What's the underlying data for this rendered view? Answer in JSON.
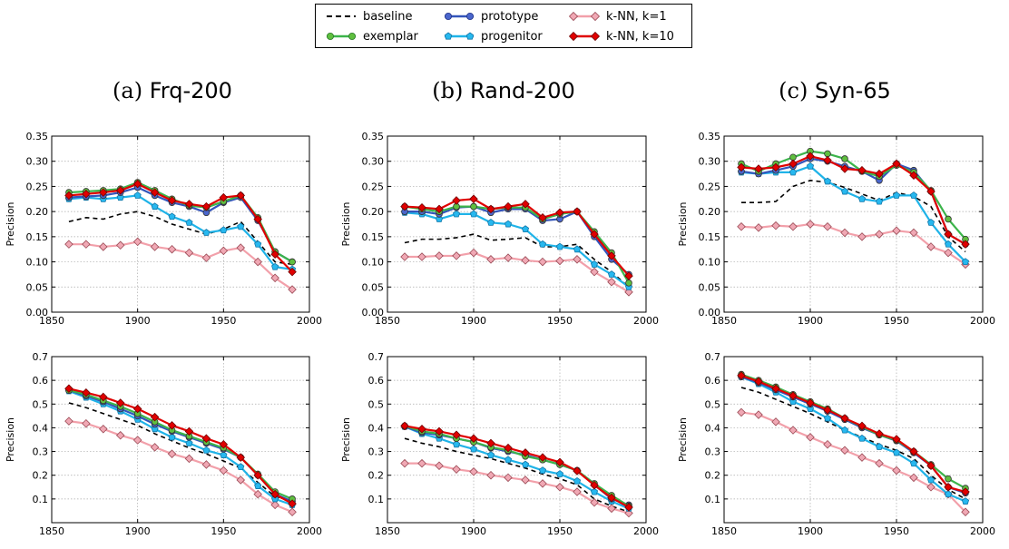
{
  "legend": {
    "items": [
      {
        "key": "baseline",
        "label": "baseline"
      },
      {
        "key": "exemplar",
        "label": "exemplar"
      },
      {
        "key": "prototype",
        "label": "prototype"
      },
      {
        "key": "progenitor",
        "label": "progenitor"
      },
      {
        "key": "knn1",
        "label": "k-NN, k=1"
      },
      {
        "key": "knn10",
        "label": "k-NN, k=10"
      }
    ]
  },
  "panel_titles": [
    {
      "prefix": "(a) ",
      "name": "Frq-200"
    },
    {
      "prefix": "(b) ",
      "name": "Rand-200"
    },
    {
      "prefix": "(c) ",
      "name": "Syn-65"
    }
  ],
  "series_styles": {
    "baseline": {
      "color": "#000000",
      "dash": true,
      "marker": "none"
    },
    "exemplar": {
      "color": "#3cb44b",
      "marker": "circle",
      "fill": "#5fbf3f"
    },
    "prototype": {
      "color": "#3355bb",
      "marker": "circle",
      "fill": "#4a66cc"
    },
    "progenitor": {
      "color": "#1fb3e8",
      "marker": "pentagon",
      "fill": "#27b8ef"
    },
    "knn1": {
      "color": "#f2a0aa",
      "marker": "diamond",
      "fill": "#f0a8b4"
    },
    "knn10": {
      "color": "#e00000",
      "marker": "diamond",
      "fill": "#e00000"
    }
  },
  "chart_data": [
    {
      "type": "line",
      "panel": "Frq-200",
      "row": "top",
      "ylabel": "Precision",
      "xlabel": "",
      "xlim": [
        1850,
        2000
      ],
      "ylim": [
        0.0,
        0.35
      ],
      "xticks": [
        "1850",
        "1900",
        "1950",
        "2000"
      ],
      "yticks": [
        "0.00",
        "0.05",
        "0.10",
        "0.15",
        "0.20",
        "0.25",
        "0.30",
        "0.35"
      ],
      "grid": true,
      "x": [
        1860,
        1870,
        1880,
        1890,
        1900,
        1910,
        1920,
        1930,
        1940,
        1950,
        1960,
        1970,
        1980,
        1990
      ],
      "series": [
        {
          "name": "baseline",
          "values": [
            0.18,
            0.188,
            0.185,
            0.195,
            0.2,
            0.19,
            0.175,
            0.165,
            0.155,
            0.165,
            0.18,
            0.14,
            0.1,
            0.095
          ]
        },
        {
          "name": "knn1",
          "values": [
            0.135,
            0.135,
            0.13,
            0.133,
            0.14,
            0.13,
            0.125,
            0.118,
            0.108,
            0.122,
            0.128,
            0.1,
            0.068,
            0.045
          ]
        },
        {
          "name": "progenitor",
          "values": [
            0.225,
            0.228,
            0.225,
            0.228,
            0.232,
            0.21,
            0.19,
            0.178,
            0.158,
            0.163,
            0.17,
            0.135,
            0.09,
            0.085
          ]
        },
        {
          "name": "prototype",
          "values": [
            0.228,
            0.23,
            0.232,
            0.238,
            0.248,
            0.232,
            0.218,
            0.21,
            0.198,
            0.218,
            0.228,
            0.182,
            0.12,
            0.1
          ]
        },
        {
          "name": "exemplar",
          "values": [
            0.238,
            0.24,
            0.242,
            0.245,
            0.258,
            0.242,
            0.225,
            0.212,
            0.208,
            0.22,
            0.232,
            0.188,
            0.12,
            0.1
          ]
        },
        {
          "name": "knn10",
          "values": [
            0.232,
            0.235,
            0.238,
            0.242,
            0.255,
            0.238,
            0.222,
            0.215,
            0.21,
            0.228,
            0.232,
            0.185,
            0.115,
            0.08
          ]
        }
      ]
    },
    {
      "type": "line",
      "panel": "Rand-200",
      "row": "top",
      "ylabel": "Precision",
      "xlabel": "",
      "xlim": [
        1850,
        2000
      ],
      "ylim": [
        0.0,
        0.35
      ],
      "xticks": [
        "1850",
        "1900",
        "1950",
        "2000"
      ],
      "yticks": [
        "0.00",
        "0.05",
        "0.10",
        "0.15",
        "0.20",
        "0.25",
        "0.30",
        "0.35"
      ],
      "grid": true,
      "x": [
        1860,
        1870,
        1880,
        1890,
        1900,
        1910,
        1920,
        1930,
        1940,
        1950,
        1960,
        1970,
        1980,
        1990
      ],
      "series": [
        {
          "name": "baseline",
          "values": [
            0.138,
            0.145,
            0.145,
            0.148,
            0.155,
            0.143,
            0.145,
            0.148,
            0.13,
            0.13,
            0.135,
            0.105,
            0.08,
            0.05
          ]
        },
        {
          "name": "knn1",
          "values": [
            0.11,
            0.11,
            0.112,
            0.112,
            0.118,
            0.105,
            0.108,
            0.103,
            0.1,
            0.102,
            0.105,
            0.08,
            0.06,
            0.04
          ]
        },
        {
          "name": "progenitor",
          "values": [
            0.198,
            0.195,
            0.185,
            0.195,
            0.195,
            0.178,
            0.175,
            0.165,
            0.135,
            0.13,
            0.125,
            0.095,
            0.075,
            0.05
          ]
        },
        {
          "name": "prototype",
          "values": [
            0.2,
            0.2,
            0.195,
            0.208,
            0.21,
            0.198,
            0.205,
            0.205,
            0.182,
            0.185,
            0.2,
            0.15,
            0.105,
            0.075
          ]
        },
        {
          "name": "exemplar",
          "values": [
            0.21,
            0.205,
            0.2,
            0.21,
            0.21,
            0.205,
            0.208,
            0.208,
            0.185,
            0.195,
            0.2,
            0.16,
            0.118,
            0.058
          ]
        },
        {
          "name": "knn10",
          "values": [
            0.21,
            0.208,
            0.205,
            0.222,
            0.225,
            0.205,
            0.21,
            0.215,
            0.188,
            0.198,
            0.2,
            0.155,
            0.112,
            0.072
          ]
        }
      ]
    },
    {
      "type": "line",
      "panel": "Syn-65",
      "row": "top",
      "ylabel": "Precision",
      "xlabel": "",
      "xlim": [
        1850,
        2000
      ],
      "ylim": [
        0.0,
        0.35
      ],
      "xticks": [
        "1850",
        "1900",
        "1950",
        "2000"
      ],
      "yticks": [
        "0.00",
        "0.05",
        "0.10",
        "0.15",
        "0.20",
        "0.25",
        "0.30",
        "0.35"
      ],
      "grid": true,
      "x": [
        1860,
        1870,
        1880,
        1890,
        1900,
        1910,
        1920,
        1930,
        1940,
        1950,
        1960,
        1970,
        1980,
        1990
      ],
      "series": [
        {
          "name": "baseline",
          "values": [
            0.218,
            0.218,
            0.22,
            0.25,
            0.262,
            0.258,
            0.248,
            0.235,
            0.222,
            0.238,
            0.23,
            0.21,
            0.15,
            0.12
          ]
        },
        {
          "name": "knn1",
          "values": [
            0.17,
            0.168,
            0.172,
            0.17,
            0.175,
            0.17,
            0.158,
            0.15,
            0.155,
            0.162,
            0.158,
            0.13,
            0.118,
            0.095
          ]
        },
        {
          "name": "progenitor",
          "values": [
            0.278,
            0.275,
            0.278,
            0.278,
            0.29,
            0.26,
            0.24,
            0.225,
            0.22,
            0.232,
            0.232,
            0.178,
            0.135,
            0.1
          ]
        },
        {
          "name": "prototype",
          "values": [
            0.28,
            0.275,
            0.282,
            0.29,
            0.305,
            0.3,
            0.29,
            0.28,
            0.262,
            0.295,
            0.282,
            0.24,
            0.155,
            0.135
          ]
        },
        {
          "name": "exemplar",
          "values": [
            0.295,
            0.28,
            0.295,
            0.308,
            0.32,
            0.315,
            0.305,
            0.28,
            0.27,
            0.292,
            0.278,
            0.242,
            0.185,
            0.145
          ]
        },
        {
          "name": "knn10",
          "values": [
            0.288,
            0.285,
            0.288,
            0.295,
            0.31,
            0.302,
            0.285,
            0.282,
            0.275,
            0.295,
            0.272,
            0.24,
            0.155,
            0.135
          ]
        }
      ]
    },
    {
      "type": "line",
      "panel": "Frq-200",
      "row": "bottom",
      "ylabel": "Precision",
      "xlabel": "",
      "xlim": [
        1850,
        2000
      ],
      "ylim": [
        0.0,
        0.7
      ],
      "xticks": [
        "1850",
        "1900",
        "1950",
        "2000"
      ],
      "yticks": [
        "0.1",
        "0.2",
        "0.3",
        "0.4",
        "0.5",
        "0.6",
        "0.7"
      ],
      "grid": true,
      "x": [
        1860,
        1870,
        1880,
        1890,
        1900,
        1910,
        1920,
        1930,
        1940,
        1950,
        1960,
        1970,
        1980,
        1990
      ],
      "series": [
        {
          "name": "baseline",
          "values": [
            0.505,
            0.485,
            0.46,
            0.435,
            0.41,
            0.375,
            0.345,
            0.315,
            0.29,
            0.26,
            0.23,
            0.17,
            0.11,
            0.09
          ]
        },
        {
          "name": "knn1",
          "values": [
            0.428,
            0.418,
            0.395,
            0.368,
            0.348,
            0.318,
            0.29,
            0.27,
            0.245,
            0.22,
            0.18,
            0.12,
            0.075,
            0.045
          ]
        },
        {
          "name": "progenitor",
          "values": [
            0.555,
            0.528,
            0.5,
            0.47,
            0.435,
            0.395,
            0.36,
            0.335,
            0.305,
            0.285,
            0.235,
            0.155,
            0.1,
            0.075
          ]
        },
        {
          "name": "prototype",
          "values": [
            0.558,
            0.535,
            0.51,
            0.48,
            0.45,
            0.415,
            0.385,
            0.36,
            0.335,
            0.31,
            0.275,
            0.2,
            0.12,
            0.09
          ]
        },
        {
          "name": "exemplar",
          "values": [
            0.558,
            0.54,
            0.515,
            0.49,
            0.46,
            0.425,
            0.39,
            0.365,
            0.34,
            0.315,
            0.275,
            0.205,
            0.13,
            0.1
          ]
        },
        {
          "name": "knn10",
          "values": [
            0.565,
            0.548,
            0.53,
            0.505,
            0.48,
            0.445,
            0.41,
            0.385,
            0.355,
            0.33,
            0.275,
            0.2,
            0.12,
            0.08
          ]
        }
      ]
    },
    {
      "type": "line",
      "panel": "Rand-200",
      "row": "bottom",
      "ylabel": "Precision",
      "xlabel": "",
      "xlim": [
        1850,
        2000
      ],
      "ylim": [
        0.0,
        0.7
      ],
      "xticks": [
        "1850",
        "1900",
        "1950",
        "2000"
      ],
      "yticks": [
        "0.1",
        "0.2",
        "0.3",
        "0.4",
        "0.5",
        "0.6",
        "0.7"
      ],
      "grid": true,
      "x": [
        1860,
        1870,
        1880,
        1890,
        1900,
        1910,
        1920,
        1930,
        1940,
        1950,
        1960,
        1970,
        1980,
        1990
      ],
      "series": [
        {
          "name": "baseline",
          "values": [
            0.355,
            0.335,
            0.32,
            0.3,
            0.285,
            0.27,
            0.25,
            0.23,
            0.205,
            0.185,
            0.16,
            0.1,
            0.07,
            0.045
          ]
        },
        {
          "name": "knn1",
          "values": [
            0.25,
            0.25,
            0.24,
            0.225,
            0.215,
            0.2,
            0.19,
            0.18,
            0.165,
            0.15,
            0.13,
            0.085,
            0.06,
            0.04
          ]
        },
        {
          "name": "progenitor",
          "values": [
            0.405,
            0.375,
            0.355,
            0.33,
            0.31,
            0.285,
            0.265,
            0.245,
            0.22,
            0.205,
            0.175,
            0.13,
            0.09,
            0.06
          ]
        },
        {
          "name": "prototype",
          "values": [
            0.405,
            0.38,
            0.37,
            0.355,
            0.34,
            0.315,
            0.3,
            0.285,
            0.265,
            0.245,
            0.22,
            0.16,
            0.1,
            0.075
          ]
        },
        {
          "name": "exemplar",
          "values": [
            0.408,
            0.385,
            0.375,
            0.355,
            0.34,
            0.318,
            0.305,
            0.28,
            0.265,
            0.245,
            0.22,
            0.165,
            0.115,
            0.07
          ]
        },
        {
          "name": "knn10",
          "values": [
            0.408,
            0.395,
            0.385,
            0.37,
            0.355,
            0.335,
            0.315,
            0.295,
            0.275,
            0.255,
            0.218,
            0.158,
            0.105,
            0.065
          ]
        }
      ]
    },
    {
      "type": "line",
      "panel": "Syn-65",
      "row": "bottom",
      "ylabel": "Precision",
      "xlabel": "",
      "xlim": [
        1850,
        2000
      ],
      "ylim": [
        0.0,
        0.7
      ],
      "xticks": [
        "1850",
        "1900",
        "1950",
        "2000"
      ],
      "yticks": [
        "0.1",
        "0.2",
        "0.3",
        "0.4",
        "0.5",
        "0.6",
        "0.7"
      ],
      "grid": true,
      "x": [
        1860,
        1870,
        1880,
        1890,
        1900,
        1910,
        1920,
        1930,
        1940,
        1950,
        1960,
        1970,
        1980,
        1990
      ],
      "series": [
        {
          "name": "baseline",
          "values": [
            0.57,
            0.55,
            0.52,
            0.49,
            0.46,
            0.425,
            0.39,
            0.36,
            0.33,
            0.305,
            0.27,
            0.2,
            0.14,
            0.1
          ]
        },
        {
          "name": "knn1",
          "values": [
            0.465,
            0.455,
            0.425,
            0.39,
            0.36,
            0.33,
            0.305,
            0.275,
            0.25,
            0.22,
            0.19,
            0.15,
            0.12,
            0.045
          ]
        },
        {
          "name": "progenitor",
          "values": [
            0.615,
            0.585,
            0.55,
            0.51,
            0.48,
            0.44,
            0.39,
            0.355,
            0.32,
            0.295,
            0.25,
            0.18,
            0.12,
            0.09
          ]
        },
        {
          "name": "prototype",
          "values": [
            0.615,
            0.59,
            0.56,
            0.53,
            0.5,
            0.47,
            0.435,
            0.4,
            0.37,
            0.345,
            0.295,
            0.24,
            0.15,
            0.125
          ]
        },
        {
          "name": "exemplar",
          "values": [
            0.625,
            0.6,
            0.572,
            0.54,
            0.51,
            0.48,
            0.44,
            0.405,
            0.37,
            0.348,
            0.3,
            0.245,
            0.185,
            0.145
          ]
        },
        {
          "name": "knn10",
          "values": [
            0.62,
            0.595,
            0.565,
            0.535,
            0.505,
            0.475,
            0.44,
            0.408,
            0.375,
            0.352,
            0.3,
            0.24,
            0.15,
            0.13
          ]
        }
      ]
    }
  ]
}
